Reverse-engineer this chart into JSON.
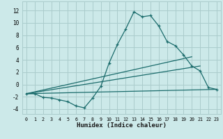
{
  "xlabel": "Humidex (Indice chaleur)",
  "xlim": [
    -0.5,
    23.5
  ],
  "ylim": [
    -4.8,
    13.5
  ],
  "xticks": [
    0,
    1,
    2,
    3,
    4,
    5,
    6,
    7,
    8,
    9,
    10,
    11,
    12,
    13,
    14,
    15,
    16,
    17,
    18,
    19,
    20,
    21,
    22,
    23
  ],
  "yticks": [
    -4,
    -2,
    0,
    2,
    4,
    6,
    8,
    10,
    12
  ],
  "background_color": "#cce9e9",
  "grid_color": "#aacccc",
  "line_color": "#1a6b6b",
  "line1_x": [
    0,
    1,
    2,
    3,
    4,
    5,
    6,
    7,
    8,
    9,
    10,
    11,
    12,
    13,
    14,
    15,
    16,
    17,
    18,
    19,
    20,
    21,
    22,
    23
  ],
  "line1_y": [
    -1.5,
    -1.5,
    -2.1,
    -2.2,
    -2.5,
    -2.8,
    -3.5,
    -3.8,
    -2.2,
    -0.3,
    3.5,
    6.5,
    9.0,
    11.8,
    11.0,
    11.2,
    9.5,
    7.0,
    6.3,
    4.8,
    3.0,
    2.2,
    -0.5,
    -0.8
  ],
  "line2_x": [
    0,
    20
  ],
  "line2_y": [
    -1.5,
    4.5
  ],
  "line3_x": [
    0,
    21
  ],
  "line3_y": [
    -1.5,
    3.0
  ],
  "line4_x": [
    0,
    23
  ],
  "line4_y": [
    -1.5,
    -0.8
  ]
}
